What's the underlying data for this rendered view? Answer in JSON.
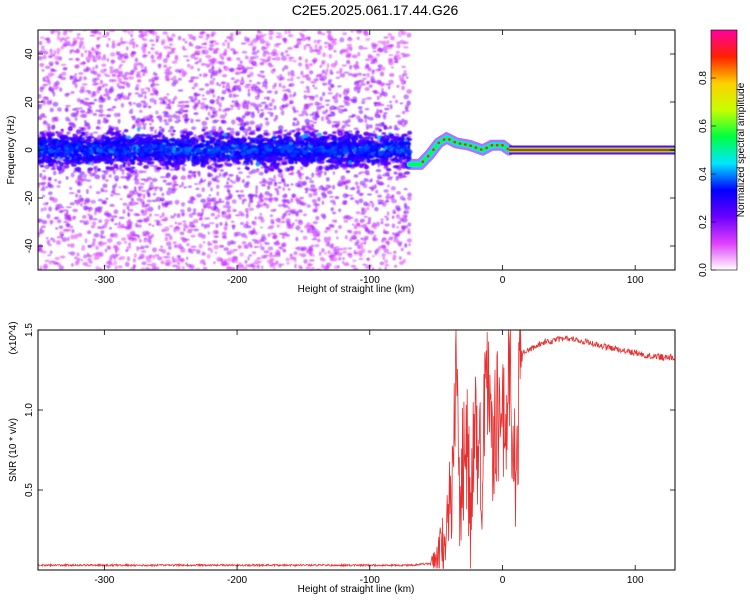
{
  "title": "C2E5.2025.061.17.44.G26",
  "chart_data": [
    {
      "type": "heatmap",
      "xlabel": "Height of straight line (km)",
      "ylabel": "Frequency (Hz)",
      "xlim": [
        -350,
        130
      ],
      "ylim": [
        -50,
        50
      ],
      "x_ticks": [
        -300,
        -200,
        -100,
        0,
        100
      ],
      "y_ticks": [
        -40,
        -20,
        0,
        20,
        40
      ],
      "colorbar": {
        "label": "Normalized spectral amplitude",
        "range": [
          0,
          1
        ],
        "ticks": [
          "0.0",
          "0.2",
          "0.4",
          "0.6",
          "0.8"
        ],
        "tick_values": [
          0,
          0.2,
          0.4,
          0.6,
          0.8
        ],
        "colors": [
          "#ffffff",
          "#e040ff",
          "#6a00ff",
          "#0000ff",
          "#00e6ff",
          "#00ff40",
          "#c8ff00",
          "#ffd000",
          "#ff2000",
          "#ff00a0"
        ]
      },
      "features": {
        "noise_region_x": [
          -350,
          -70
        ],
        "noise_core_halfwidth_hz": 8,
        "transition_track": [
          {
            "x": -70,
            "f": -6
          },
          {
            "x": -62,
            "f": -6
          },
          {
            "x": -55,
            "f": -2
          },
          {
            "x": -48,
            "f": 3
          },
          {
            "x": -42,
            "f": 5
          },
          {
            "x": -35,
            "f": 3
          },
          {
            "x": -25,
            "f": 2
          },
          {
            "x": -15,
            "f": 0
          },
          {
            "x": -8,
            "f": 2
          },
          {
            "x": 0,
            "f": 2
          },
          {
            "x": 5,
            "f": 0
          }
        ],
        "steady_line": {
          "x": [
            5,
            130
          ],
          "f": 0
        }
      }
    },
    {
      "type": "line",
      "xlabel": "Height of straight line (km)",
      "ylabel": "SNR (10 * v/v)",
      "y_multiplier": "(x10^4)",
      "xlim": [
        -350,
        130
      ],
      "ylim": [
        0,
        1.5
      ],
      "x_ticks": [
        -300,
        -200,
        -100,
        0,
        100
      ],
      "y_ticks": [
        0.5,
        1.0,
        1.5
      ],
      "y_tick_labels": [
        "0.5",
        "1.0",
        "1.5"
      ],
      "series": [
        {
          "color": "#e83030",
          "points": [
            [
              -350,
              0.03
            ],
            [
              -300,
              0.03
            ],
            [
              -250,
              0.03
            ],
            [
              -200,
              0.03
            ],
            [
              -150,
              0.03
            ],
            [
              -100,
              0.03
            ],
            [
              -70,
              0.03
            ],
            [
              -55,
              0.04
            ],
            [
              -48,
              0.08
            ],
            [
              -42,
              0.2
            ],
            [
              -38,
              0.55
            ],
            [
              -35,
              1.2
            ],
            [
              -32,
              0.4
            ],
            [
              -28,
              0.9
            ],
            [
              -24,
              0.35
            ],
            [
              -20,
              0.95
            ],
            [
              -16,
              0.55
            ],
            [
              -12,
              1.15
            ],
            [
              -8,
              0.75
            ],
            [
              -4,
              1.0
            ],
            [
              0,
              0.85
            ],
            [
              5,
              1.2
            ],
            [
              10,
              0.55
            ],
            [
              14,
              1.35
            ],
            [
              20,
              1.38
            ],
            [
              30,
              1.42
            ],
            [
              40,
              1.44
            ],
            [
              50,
              1.45
            ],
            [
              60,
              1.43
            ],
            [
              70,
              1.41
            ],
            [
              80,
              1.39
            ],
            [
              90,
              1.37
            ],
            [
              100,
              1.36
            ],
            [
              110,
              1.34
            ],
            [
              120,
              1.33
            ],
            [
              130,
              1.33
            ]
          ]
        }
      ]
    }
  ],
  "axis_text": {
    "x_tick_labels": [
      "-300",
      "-200",
      "-100",
      "0",
      "100"
    ],
    "hm_y_tick_labels": [
      "-40",
      "-20",
      "0",
      "20",
      "40"
    ]
  }
}
